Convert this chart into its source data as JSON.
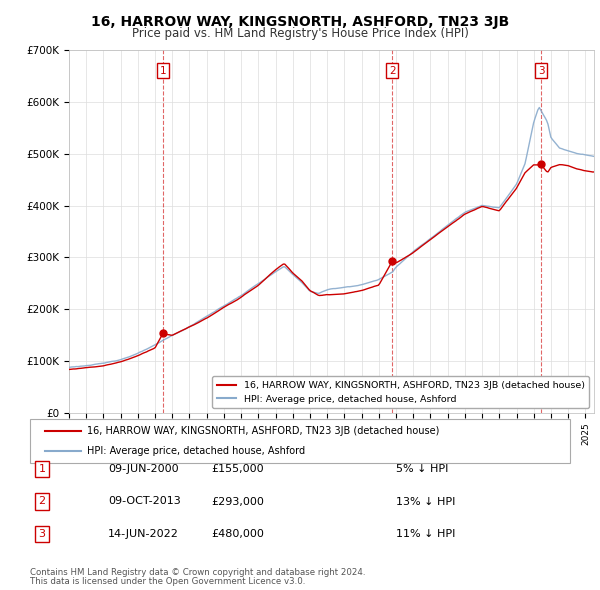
{
  "title": "16, HARROW WAY, KINGSNORTH, ASHFORD, TN23 3JB",
  "subtitle": "Price paid vs. HM Land Registry's House Price Index (HPI)",
  "hpi_label": "HPI: Average price, detached house, Ashford",
  "price_label": "16, HARROW WAY, KINGSNORTH, ASHFORD, TN23 3JB (detached house)",
  "red_color": "#cc0000",
  "blue_color": "#88aacc",
  "ylabel_ticks": [
    "£0",
    "£100K",
    "£200K",
    "£300K",
    "£400K",
    "£500K",
    "£600K",
    "£700K"
  ],
  "ylabel_values": [
    0,
    100000,
    200000,
    300000,
    400000,
    500000,
    600000,
    700000
  ],
  "ylim": [
    0,
    700000
  ],
  "xlim_start": 1995,
  "xlim_end": 2025.5,
  "transactions": [
    {
      "num": 1,
      "date": "09-JUN-2000",
      "price": 155000,
      "pct": "5%",
      "dir": "↓",
      "year": 2000.44
    },
    {
      "num": 2,
      "date": "09-OCT-2013",
      "price": 293000,
      "pct": "13%",
      "dir": "↓",
      "year": 2013.77
    },
    {
      "num": 3,
      "date": "14-JUN-2022",
      "price": 480000,
      "pct": "11%",
      "dir": "↓",
      "year": 2022.44
    }
  ],
  "footnote1": "Contains HM Land Registry data © Crown copyright and database right 2024.",
  "footnote2": "This data is licensed under the Open Government Licence v3.0.",
  "hpi_knots_x": [
    1995,
    1997,
    1998,
    1999,
    2000,
    2001,
    2002,
    2003,
    2004,
    2005,
    2006,
    2007,
    2007.5,
    2008,
    2008.5,
    2009,
    2009.5,
    2010,
    2011,
    2012,
    2013,
    2013.8,
    2014,
    2015,
    2016,
    2017,
    2018,
    2019,
    2020,
    2021,
    2021.5,
    2022,
    2022.3,
    2022.8,
    2023,
    2023.5,
    2024,
    2024.5,
    2025,
    2025.5
  ],
  "hpi_knots_y": [
    88000,
    95000,
    103000,
    115000,
    130000,
    148000,
    165000,
    185000,
    205000,
    225000,
    248000,
    270000,
    280000,
    265000,
    250000,
    232000,
    228000,
    235000,
    240000,
    245000,
    255000,
    270000,
    280000,
    310000,
    335000,
    360000,
    385000,
    400000,
    395000,
    440000,
    480000,
    560000,
    590000,
    560000,
    530000,
    510000,
    505000,
    500000,
    498000,
    495000
  ],
  "red_knots_x": [
    1995,
    1997,
    1998,
    1999,
    2000,
    2000.44,
    2001,
    2002,
    2003,
    2004,
    2005,
    2006,
    2007,
    2007.5,
    2008,
    2008.5,
    2009,
    2009.5,
    2010,
    2011,
    2012,
    2013,
    2013.77,
    2014,
    2015,
    2016,
    2017,
    2018,
    2019,
    2020,
    2021,
    2021.5,
    2022,
    2022.44,
    2022.8,
    2023,
    2023.5,
    2024,
    2024.5,
    2025,
    2025.5
  ],
  "red_knots_y": [
    84000,
    92000,
    100000,
    112000,
    128000,
    155000,
    152000,
    168000,
    185000,
    205000,
    225000,
    248000,
    278000,
    290000,
    272000,
    258000,
    238000,
    228000,
    230000,
    232000,
    238000,
    248000,
    293000,
    290000,
    310000,
    335000,
    360000,
    385000,
    400000,
    392000,
    435000,
    465000,
    480000,
    480000,
    465000,
    475000,
    480000,
    478000,
    472000,
    468000,
    465000
  ]
}
